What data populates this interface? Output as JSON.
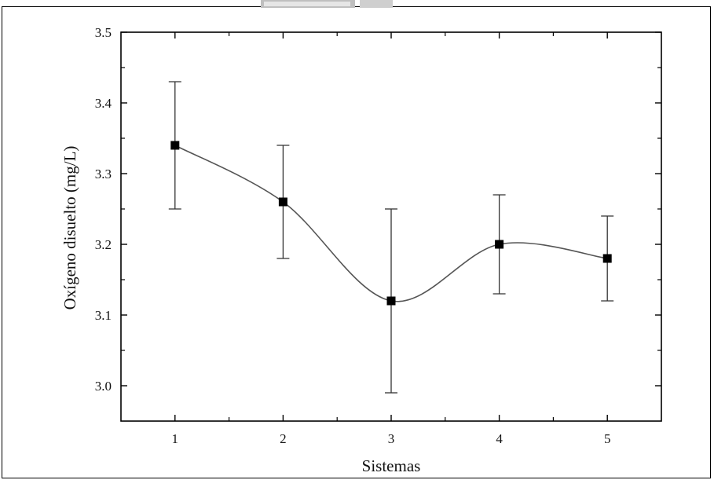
{
  "chart_data": {
    "type": "line",
    "xlabel": "Sistemas",
    "ylabel": "Oxígeno disuelto (mg/L)",
    "xlim": [
      0.5,
      5.5
    ],
    "ylim": [
      2.95,
      3.5
    ],
    "xticks": [
      "1",
      "2",
      "3",
      "4",
      "5"
    ],
    "yticks": [
      "3.0",
      "3.1",
      "3.2",
      "3.3",
      "3.4",
      "3.5"
    ],
    "x": [
      1,
      2,
      3,
      4,
      5
    ],
    "y": [
      3.34,
      3.26,
      3.12,
      3.2,
      3.18
    ],
    "error_upper": [
      3.43,
      3.34,
      3.25,
      3.27,
      3.24
    ],
    "error_lower": [
      3.25,
      3.18,
      2.99,
      3.13,
      3.12
    ],
    "marker": "square",
    "line": "smooth spline",
    "grid": false,
    "colors": {
      "line": "#555555",
      "marker": "#000000",
      "axis": "#000000"
    }
  }
}
